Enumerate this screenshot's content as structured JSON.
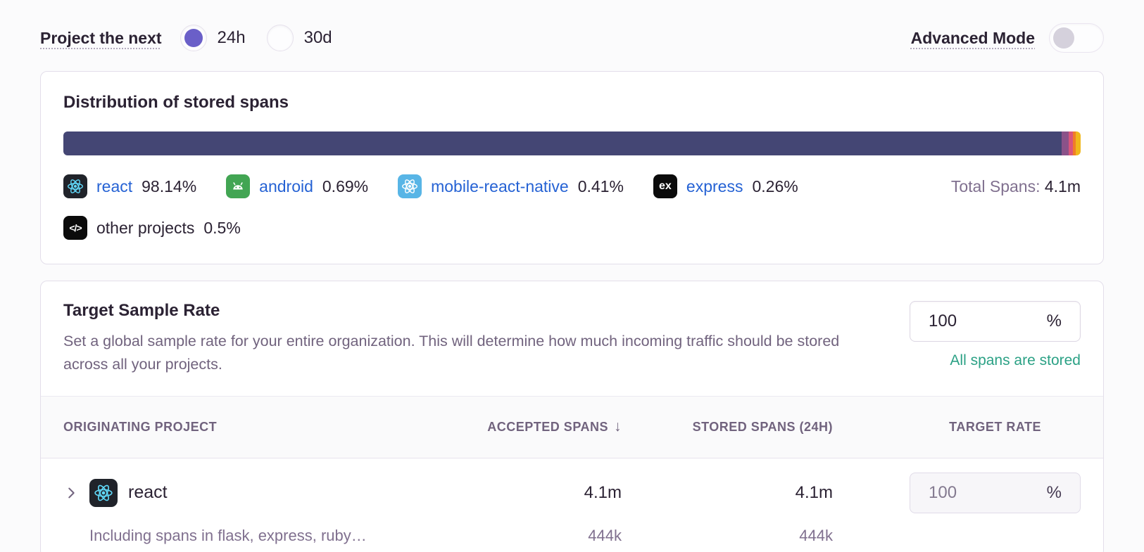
{
  "topbar": {
    "project_next_label": "Project the next",
    "period_options": [
      {
        "label": "24h",
        "selected": true
      },
      {
        "label": "30d",
        "selected": false
      }
    ],
    "advanced_mode_label": "Advanced Mode",
    "advanced_mode_enabled": false
  },
  "distribution_card": {
    "title": "Distribution of stored spans",
    "total_label": "Total Spans:",
    "total_value": "4.1m",
    "bar_segments": [
      {
        "name": "react",
        "percent": 98.14,
        "color": "#444674"
      },
      {
        "name": "android",
        "percent": 0.69,
        "color": "#8b5289"
      },
      {
        "name": "mobile-react-native",
        "percent": 0.41,
        "color": "#d8557c"
      },
      {
        "name": "express",
        "percent": 0.26,
        "color": "#f07e28"
      },
      {
        "name": "other projects",
        "percent": 0.5,
        "color": "#f0b71c"
      }
    ],
    "legend": [
      {
        "label": "react",
        "percent": "98.14%",
        "icon": "react-logo"
      },
      {
        "label": "android",
        "percent": "0.69%",
        "icon": "android-logo"
      },
      {
        "label": "mobile-react-native",
        "percent": "0.41%",
        "icon": "react-native-logo"
      },
      {
        "label": "express",
        "percent": "0.26%",
        "icon": "express-logo",
        "icon_text": "ex"
      },
      {
        "label": "other projects",
        "percent": "0.5%",
        "icon": "code-brackets",
        "icon_text": "</>"
      }
    ]
  },
  "sample_rate_card": {
    "title": "Target Sample Rate",
    "description": "Set a global sample rate for your entire organization. This will determine how much incoming traffic should be stored across all your projects.",
    "rate_input": {
      "value": "100",
      "unit": "%"
    },
    "status_message": "All spans are stored",
    "table": {
      "columns": [
        "ORIGINATING PROJECT",
        "ACCEPTED SPANS",
        "STORED SPANS (24H)",
        "TARGET RATE"
      ],
      "sort_column": "ACCEPTED SPANS",
      "sort_indicator": "↓",
      "rows": [
        {
          "project": "react",
          "project_icon": "react-logo",
          "accepted": "4.1m",
          "stored": "4.1m",
          "rate": {
            "value": "100",
            "unit": "%"
          },
          "subrow": {
            "label": "Including spans in flask, express, ruby…",
            "accepted": "444k",
            "stored": "444k"
          }
        }
      ]
    }
  },
  "colors": {
    "accent_purple": "#6a5fc8",
    "link_blue": "#2562d4",
    "success_green": "#2ba185",
    "bar_main": "#444674"
  }
}
